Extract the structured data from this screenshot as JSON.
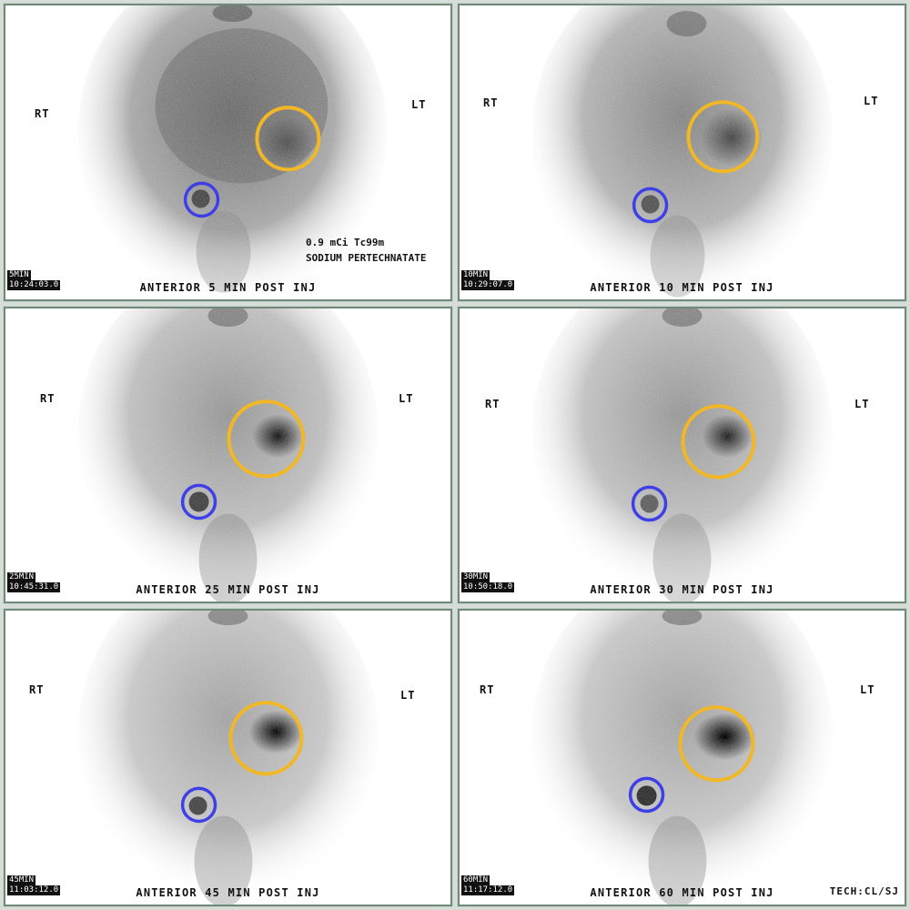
{
  "colors": {
    "gastric_roi": "#f1b726",
    "ectopic_roi": "#3f3fe8",
    "panel_border": "#6f8b78"
  },
  "dose_note": {
    "line1": "0.9 mCi Tc99m",
    "line2": "SODIUM PERTECHNATATE"
  },
  "tech_label": "TECH:CL/SJ",
  "panels": [
    {
      "rt": "RT",
      "lt": "LT",
      "caption": "ANTERIOR 5 MIN POST INJ",
      "duration": "5MIN",
      "clock": "10:24:03.0"
    },
    {
      "rt": "RT",
      "lt": "LT",
      "caption": "ANTERIOR 10 MIN POST INJ",
      "duration": "10MIN",
      "clock": "10:29:07.0"
    },
    {
      "rt": "RT",
      "lt": "LT",
      "caption": "ANTERIOR 25 MIN POST INJ",
      "duration": "25MIN",
      "clock": "10:45:31.0"
    },
    {
      "rt": "RT",
      "lt": "LT",
      "caption": "ANTERIOR 30 MIN POST INJ",
      "duration": "30MIN",
      "clock": "10:50:18.0"
    },
    {
      "rt": "RT",
      "lt": "LT",
      "caption": "ANTERIOR 45 MIN POST INJ",
      "duration": "45MIN",
      "clock": "11:03:12.0"
    },
    {
      "rt": "RT",
      "lt": "LT",
      "caption": "ANTERIOR 60 MIN POST INJ",
      "duration": "60MIN",
      "clock": "11:17:12.0"
    }
  ]
}
